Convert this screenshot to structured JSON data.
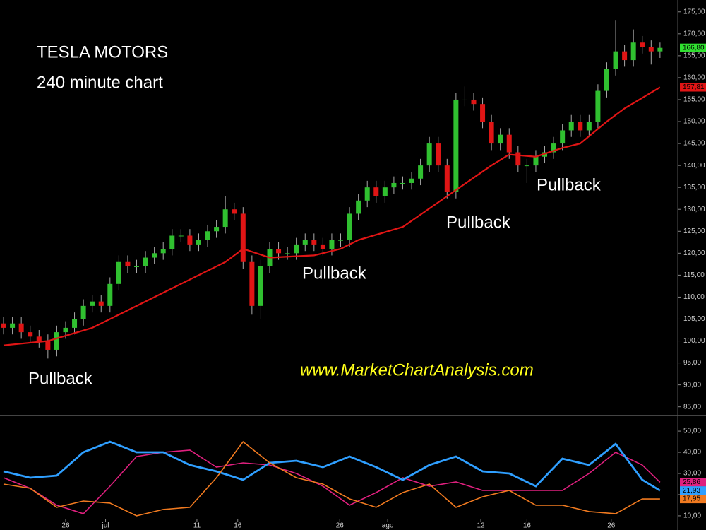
{
  "chart_data": [
    {
      "type": "candlestick",
      "title": "TESLA MOTORS",
      "subtitle": "240 minute chart",
      "annotations": [
        "Pullback",
        "Pullback",
        "Pullback",
        "Pullback",
        "www.MarketChartAnalysis.com"
      ],
      "up_color": "#30c030",
      "down_color": "#e01515",
      "xlim": [
        -0.4,
        76
      ],
      "ylim": [
        83.5,
        177.7
      ],
      "yticks": [
        {
          "value": 85,
          "label": "85,00"
        },
        {
          "value": 90,
          "label": "90,00"
        },
        {
          "value": 95,
          "label": "95,00"
        },
        {
          "value": 100,
          "label": "100,00"
        },
        {
          "value": 105,
          "label": "105,00"
        },
        {
          "value": 110,
          "label": "110,00"
        },
        {
          "value": 115,
          "label": "115,00"
        },
        {
          "value": 120,
          "label": "120,00"
        },
        {
          "value": 125,
          "label": "125,00"
        },
        {
          "value": 130,
          "label": "130,00"
        },
        {
          "value": 135,
          "label": "135,00"
        },
        {
          "value": 140,
          "label": "140,00"
        },
        {
          "value": 145,
          "label": "145,00"
        },
        {
          "value": 150,
          "label": "150,00"
        },
        {
          "value": 155,
          "label": "155,00"
        },
        {
          "value": 160,
          "label": "160,00"
        },
        {
          "value": 165,
          "label": "165,00"
        },
        {
          "value": 170,
          "label": "170,00"
        },
        {
          "value": 175,
          "label": "175,00"
        }
      ],
      "x": [
        0,
        1,
        2,
        3,
        4,
        5,
        6,
        7,
        8,
        9,
        10,
        11,
        12,
        13,
        14,
        15,
        16,
        17,
        18,
        19,
        20,
        21,
        22,
        23,
        24,
        25,
        26,
        27,
        28,
        29,
        30,
        31,
        32,
        33,
        34,
        35,
        36,
        37,
        38,
        39,
        40,
        41,
        42,
        43,
        44,
        45,
        46,
        47,
        48,
        49,
        50,
        51,
        52,
        53,
        54,
        55,
        56,
        57,
        58,
        59,
        60,
        61,
        62,
        63,
        64,
        65,
        66,
        67,
        68,
        69,
        70,
        71,
        72,
        73,
        74
      ],
      "open": [
        104,
        103,
        104,
        102,
        101,
        100,
        98,
        102,
        103,
        105,
        108,
        109,
        108,
        113,
        118,
        117,
        117,
        119,
        120,
        121,
        124,
        124,
        122,
        123,
        125,
        126,
        130,
        129,
        118,
        108,
        117,
        121,
        120,
        120,
        122,
        123,
        122,
        121,
        123,
        123,
        129,
        132,
        135,
        133,
        135,
        136,
        136,
        137,
        140,
        145,
        140,
        134,
        155,
        155,
        154,
        150,
        145,
        147,
        143,
        140,
        140,
        142,
        143,
        145,
        148,
        150,
        148,
        150,
        157,
        162,
        166,
        164,
        168,
        167,
        166
      ],
      "high": [
        105.5,
        105.5,
        105.5,
        103.5,
        102.5,
        101.5,
        103.5,
        104.5,
        106.5,
        109.5,
        110.5,
        110.5,
        114.5,
        119.5,
        119.5,
        118.5,
        120.5,
        121.5,
        122.5,
        125.5,
        125.5,
        125.5,
        124.5,
        126.5,
        127.5,
        133,
        131.5,
        130.5,
        119.5,
        118.5,
        122.5,
        122.5,
        121.5,
        123.5,
        124.5,
        124.5,
        123.5,
        124.5,
        124.5,
        130.5,
        133.5,
        136.5,
        136.5,
        136.5,
        137.5,
        137.5,
        138.5,
        141.5,
        146.5,
        146.5,
        141.5,
        156.5,
        158,
        156.5,
        155.5,
        151.5,
        148.5,
        148.5,
        144.5,
        141.5,
        143.5,
        144.5,
        146.5,
        149.5,
        151.5,
        151.5,
        151.5,
        158.5,
        163.5,
        173,
        167.5,
        171,
        169.5,
        168.5,
        168
      ],
      "low": [
        101.5,
        101.5,
        100.5,
        99.5,
        98.5,
        96,
        96.5,
        100.5,
        101.5,
        103.5,
        106.5,
        106.5,
        106.5,
        111.5,
        115.5,
        115.5,
        115.5,
        117.5,
        118.5,
        119.5,
        122.5,
        120.5,
        120.5,
        121.5,
        123.5,
        124.5,
        127.5,
        116.5,
        106,
        105,
        115.5,
        118.5,
        118.5,
        118.5,
        120.5,
        120.5,
        119.5,
        119.5,
        121.5,
        121.5,
        127.5,
        130.5,
        131.5,
        131.5,
        133.5,
        134.5,
        134.5,
        135.5,
        138.5,
        138.5,
        132.5,
        132.5,
        153.5,
        152.5,
        148.5,
        143.5,
        143.5,
        141.5,
        138.5,
        136,
        138.5,
        140.5,
        141.5,
        143.5,
        146.5,
        146.5,
        146.5,
        148.5,
        155.5,
        160.5,
        162.5,
        162.5,
        165.5,
        163,
        164.5
      ],
      "close": [
        103,
        104,
        102,
        101,
        100,
        98,
        102,
        103,
        105,
        108,
        109,
        108,
        113,
        118,
        117,
        117,
        119,
        120,
        121,
        124,
        124,
        122,
        123,
        125,
        126,
        130,
        129,
        118,
        108,
        117,
        121,
        120,
        120,
        122,
        123,
        122,
        121,
        123,
        123,
        129,
        132,
        135,
        133,
        135,
        136,
        136,
        137,
        140,
        145,
        140,
        134,
        155,
        155,
        154,
        150,
        145,
        147,
        143,
        140,
        140,
        142,
        143,
        145,
        148,
        150,
        148,
        150,
        157,
        162,
        166,
        164,
        168,
        167,
        166,
        166.8
      ],
      "overlay": {
        "color": "#e01515",
        "x": [
          0,
          5,
          10,
          15,
          20,
          25,
          27,
          30,
          35,
          38,
          40,
          45,
          50,
          55,
          57,
          60,
          63,
          65,
          68,
          70,
          74
        ],
        "values": [
          99,
          100,
          103,
          108,
          113,
          118,
          121,
          119,
          119.5,
          121,
          123,
          126,
          133,
          140,
          142.5,
          142,
          144,
          145,
          150,
          153,
          157.81
        ]
      },
      "price_tags": [
        {
          "value": 166.8,
          "label": "166,80",
          "color": "#30e030"
        },
        {
          "value": 157.81,
          "label": "157,81",
          "color": "#e01515"
        }
      ]
    },
    {
      "type": "line",
      "xlim": [
        -0.4,
        76
      ],
      "ylim": [
        3.3,
        56.7
      ],
      "yticks": [
        {
          "value": 10,
          "label": "10,00"
        },
        {
          "value": 20,
          "label": "20,00"
        },
        {
          "value": 30,
          "label": "30,00"
        },
        {
          "value": 40,
          "label": "40,00"
        },
        {
          "value": 50,
          "label": "50,00"
        }
      ],
      "xticks": [
        {
          "value": 7,
          "label": "26"
        },
        {
          "value": 11.5,
          "label": "jul"
        },
        {
          "value": 21.8,
          "label": "11"
        },
        {
          "value": 26.4,
          "label": "16"
        },
        {
          "value": 37.9,
          "label": "26"
        },
        {
          "value": 43.3,
          "label": "ago"
        },
        {
          "value": 53.8,
          "label": "12"
        },
        {
          "value": 59,
          "label": "16"
        },
        {
          "value": 68.5,
          "label": "26"
        }
      ],
      "x": [
        0,
        3,
        6,
        9,
        12,
        15,
        18,
        21,
        24,
        27,
        30,
        33,
        36,
        39,
        42,
        45,
        48,
        51,
        54,
        57,
        60,
        63,
        66,
        69,
        72,
        74
      ],
      "series": [
        {
          "color": "#e0207f",
          "values": [
            28,
            23,
            15,
            11,
            24,
            38,
            40,
            41,
            33,
            35,
            34,
            30,
            24,
            15,
            21,
            28,
            24,
            26,
            22,
            22,
            22,
            22,
            30,
            40,
            34,
            25.86
          ]
        },
        {
          "color": "#2f9fff",
          "values": [
            31,
            28,
            29,
            40,
            45,
            40,
            40,
            34,
            31,
            27,
            35,
            36,
            33,
            38,
            33,
            27,
            34,
            38,
            31,
            30,
            24,
            37,
            34,
            44,
            27,
            21.93
          ]
        },
        {
          "color": "#f07a20",
          "values": [
            25,
            23,
            14,
            17,
            16,
            10,
            13,
            14,
            28,
            45,
            35,
            28,
            25,
            18,
            14,
            21,
            25,
            14,
            19,
            22,
            15,
            15,
            12,
            11,
            18,
            17.95
          ]
        }
      ],
      "price_tags": [
        {
          "value": 25.86,
          "label": "25,86",
          "color": "#e0207f"
        },
        {
          "value": 21.93,
          "label": "21,93",
          "color": "#2f9fff"
        },
        {
          "value": 17.95,
          "label": "17,95",
          "color": "#f07a20"
        }
      ]
    }
  ]
}
